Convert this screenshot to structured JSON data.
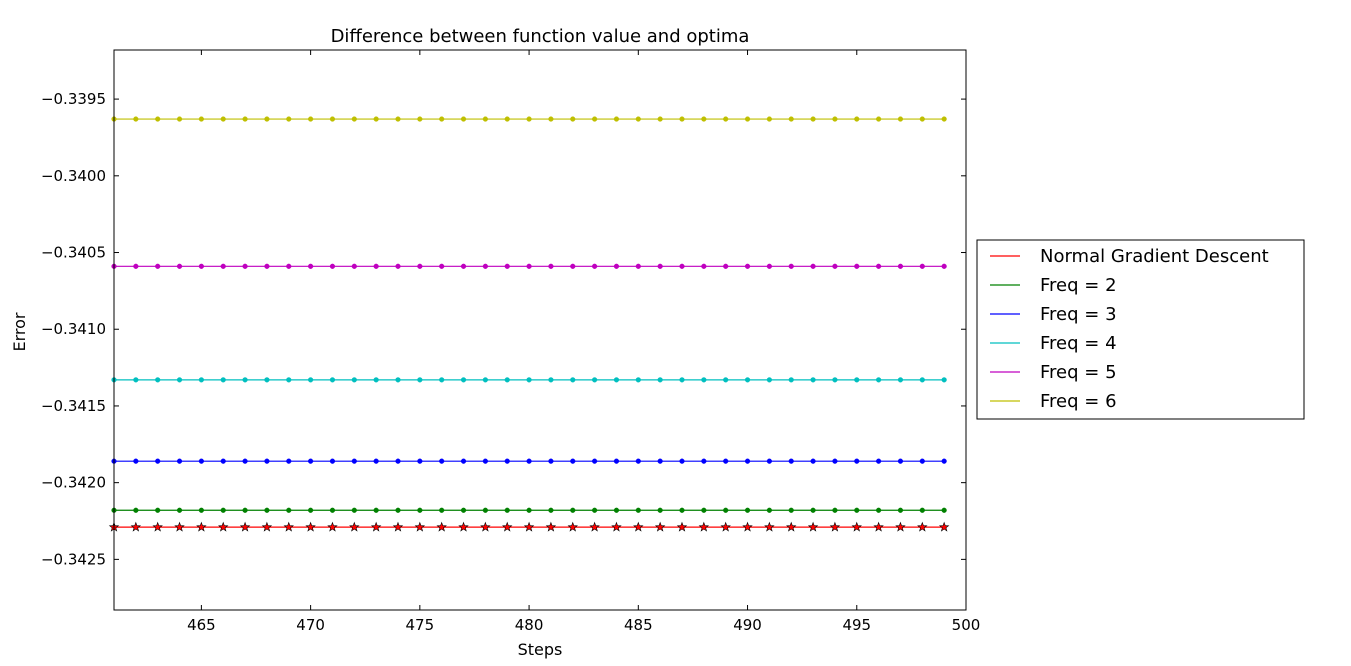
{
  "chart_data": {
    "type": "line",
    "title": "Difference between function value and optima",
    "xlabel": "Steps",
    "ylabel": "Error",
    "xlim": [
      461,
      500
    ],
    "ylim": [
      -0.34283,
      -0.33918
    ],
    "xticks": [
      465,
      470,
      475,
      480,
      485,
      490,
      495,
      500
    ],
    "xtick_labels": [
      "465",
      "470",
      "475",
      "480",
      "485",
      "490",
      "495",
      "500"
    ],
    "yticks": [
      -0.3395,
      -0.34,
      -0.3405,
      -0.341,
      -0.3415,
      -0.342,
      -0.3425
    ],
    "ytick_labels": [
      "−0.3395",
      "−0.3400",
      "−0.3405",
      "−0.3410",
      "−0.3415",
      "−0.3420",
      "−0.3425"
    ],
    "x_start": 461,
    "x_end": 499,
    "legend_position": "outside-right",
    "series": [
      {
        "name": "Normal Gradient Descent",
        "color": "#ff0000",
        "marker": "star",
        "value": -0.34229
      },
      {
        "name": "Freq = 2",
        "color": "#008000",
        "marker": "dot",
        "value": -0.34218
      },
      {
        "name": "Freq = 3",
        "color": "#0000ff",
        "marker": "dot",
        "value": -0.34186
      },
      {
        "name": "Freq = 4",
        "color": "#00bfbf",
        "marker": "dot",
        "value": -0.34133
      },
      {
        "name": "Freq = 5",
        "color": "#bf00bf",
        "marker": "dot",
        "value": -0.34059
      },
      {
        "name": "Freq = 6",
        "color": "#bfbf00",
        "marker": "dot",
        "value": -0.33963
      }
    ]
  }
}
